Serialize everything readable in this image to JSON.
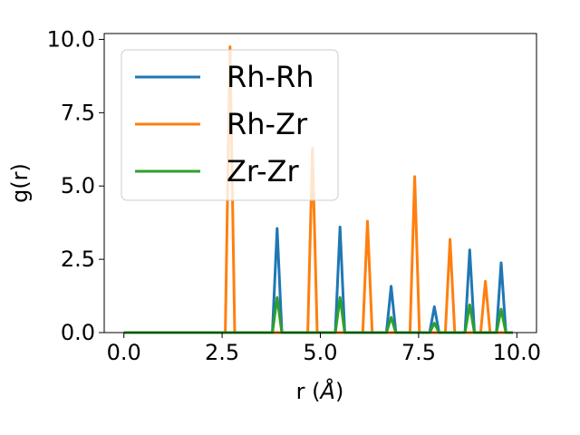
{
  "chart_data": {
    "type": "line",
    "title": "",
    "xlabel": "r (",
    "xlabel_symbol": "Å",
    "xlabel_suffix": ")",
    "ylabel": "g(r)",
    "xlim": [
      -0.5,
      10.5
    ],
    "ylim": [
      0,
      10.2
    ],
    "xticks": [
      0.0,
      2.5,
      5.0,
      7.5,
      10.0
    ],
    "xtick_labels": [
      "0.0",
      "2.5",
      "5.0",
      "7.5",
      "10.0"
    ],
    "yticks": [
      0.0,
      2.5,
      5.0,
      7.5,
      10.0
    ],
    "ytick_labels": [
      "0.0",
      "2.5",
      "5.0",
      "7.5",
      "10.0"
    ],
    "grid": false,
    "legend_position": "upper-left",
    "x_range": [
      0.0,
      9.9
    ],
    "peak_halfwidth": 0.12,
    "series": [
      {
        "name": "Rh-Rh",
        "color": "#1f77b4",
        "peaks": [
          [
            3.9,
            3.55
          ],
          [
            5.5,
            3.6
          ],
          [
            6.8,
            1.58
          ],
          [
            7.9,
            0.88
          ],
          [
            8.8,
            2.82
          ],
          [
            9.6,
            2.38
          ]
        ]
      },
      {
        "name": "Rh-Zr",
        "color": "#ff7f0e",
        "peaks": [
          [
            2.7,
            9.75
          ],
          [
            4.8,
            6.28
          ],
          [
            6.2,
            3.8
          ],
          [
            7.4,
            5.32
          ],
          [
            8.3,
            3.18
          ],
          [
            9.2,
            1.75
          ]
        ]
      },
      {
        "name": "Zr-Zr",
        "color": "#2ca02c",
        "peaks": [
          [
            3.9,
            1.2
          ],
          [
            5.5,
            1.2
          ],
          [
            6.8,
            0.52
          ],
          [
            7.9,
            0.32
          ],
          [
            8.8,
            0.95
          ],
          [
            9.6,
            0.8
          ]
        ]
      }
    ]
  }
}
